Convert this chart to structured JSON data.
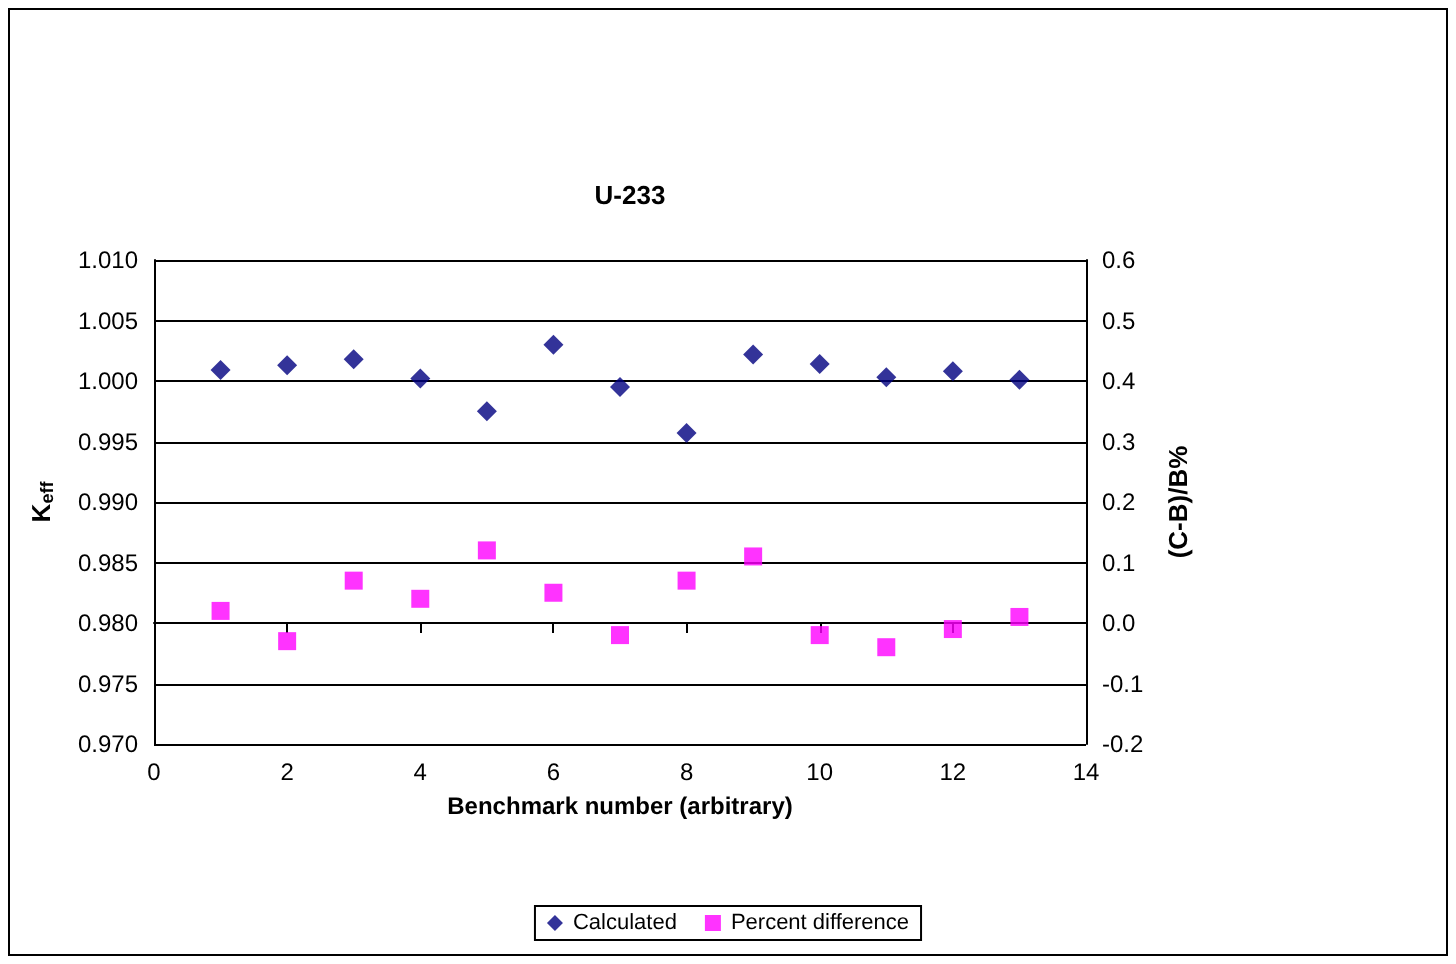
{
  "chart_data": {
    "type": "scatter",
    "title": "U-233",
    "xlabel": "Benchmark number (arbitrary)",
    "ylabel": "K$_{eff}$",
    "y2label": "(C-B)/B%",
    "x": [
      1,
      2,
      3,
      4,
      5,
      6,
      7,
      8,
      9,
      10,
      11,
      12,
      13
    ],
    "series": [
      {
        "name": "Calculated",
        "color": "#000080",
        "marker": "diamond",
        "values": [
          1.0009,
          1.0013,
          1.0018,
          1.0002,
          0.9975,
          1.003,
          0.9995,
          0.9957,
          1.0022,
          1.0014,
          1.0003,
          1.0008,
          1.0001
        ]
      },
      {
        "name": "Percent difference",
        "color": "#ff00ff",
        "marker": "square",
        "axis": "y2",
        "values": [
          0.02,
          -0.03,
          0.07,
          0.04,
          0.12,
          0.05,
          -0.02,
          0.07,
          0.11,
          -0.02,
          -0.04,
          -0.01,
          0.01
        ]
      }
    ],
    "xlim": [
      0,
      14
    ],
    "xticks": [
      0,
      2,
      4,
      6,
      8,
      10,
      12,
      14
    ],
    "ylim": [
      0.97,
      1.01
    ],
    "yticks": [
      {
        "value": 0.97,
        "label": "0.970"
      },
      {
        "value": 0.975,
        "label": "0.975"
      },
      {
        "value": 0.98,
        "label": "0.980"
      },
      {
        "value": 0.985,
        "label": "0.985"
      },
      {
        "value": 0.99,
        "label": "0.990"
      },
      {
        "value": 0.995,
        "label": "0.995"
      },
      {
        "value": 1.0,
        "label": "1.000"
      },
      {
        "value": 1.005,
        "label": "1.005"
      },
      {
        "value": 1.01,
        "label": "1.010"
      }
    ],
    "y2lim": [
      -0.2,
      0.6
    ],
    "y2ticks": [
      {
        "value": -0.2,
        "label": "-0.2"
      },
      {
        "value": -0.1,
        "label": "-0.1"
      },
      {
        "value": 0,
        "label": "0.0"
      },
      {
        "value": 0.1,
        "label": "0.1"
      },
      {
        "value": 0.2,
        "label": "0.2"
      },
      {
        "value": 0.3,
        "label": "0.3"
      },
      {
        "value": 0.4,
        "label": "0.4"
      },
      {
        "value": 0.5,
        "label": "0.5"
      },
      {
        "value": 0.6,
        "label": "0.6"
      }
    ],
    "grid": "y",
    "legend": "bottom"
  }
}
